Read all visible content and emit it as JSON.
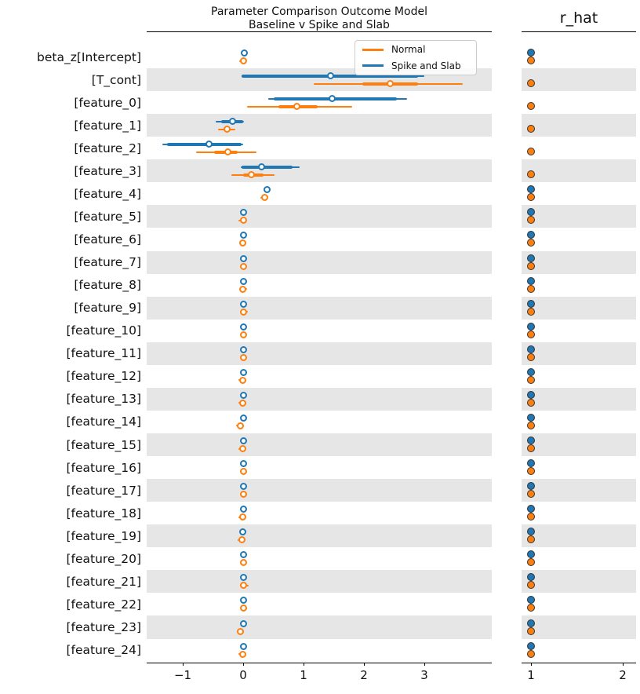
{
  "chart_data": {
    "type": "scatter",
    "subtype": "forest-plot-two-panel",
    "title_lines": [
      "Parameter Comparison Outcome Model",
      "Baseline v Spike and Slab"
    ],
    "rhat_panel_title": "r_hat",
    "series": [
      {
        "key": "normal",
        "name": "Normal",
        "color": "#ff7f0e"
      },
      {
        "key": "spike",
        "name": "Spike and Slab",
        "color": "#1f77b4"
      }
    ],
    "colors": {
      "band": "#e6e6e6",
      "axis": "#000000",
      "marker_face": "#ffffff",
      "rhat_marker_edge": "#333333"
    },
    "main_axis": {
      "xlim": [
        -1.6,
        4.12
      ],
      "tick_values": [
        -1,
        0,
        1,
        2,
        3
      ],
      "tick_labels": [
        "−1",
        "0",
        "1",
        "2",
        "3"
      ]
    },
    "rhat_axis": {
      "xlim": [
        0.9,
        2.15
      ],
      "tick_values": [
        1,
        2
      ],
      "tick_labels": [
        "1",
        "2"
      ]
    },
    "legend_position": "upper-right-inside",
    "grid": false,
    "rows": [
      {
        "label": "beta_z[Intercept]",
        "band": false,
        "spike": {
          "median": 0.02,
          "ci": null,
          "thick": null,
          "rhat": 1.0
        },
        "normal": {
          "median": 0.0,
          "ci": [
            -0.06,
            0.03
          ],
          "thick": null,
          "rhat": 1.0
        }
      },
      {
        "label": "[T_cont]",
        "band": true,
        "spike": {
          "median": 1.45,
          "ci": [
            -0.02,
            3.0
          ],
          "thick": [
            -0.02,
            2.9
          ],
          "rhat": null
        },
        "normal": {
          "median": 2.44,
          "ci": [
            1.17,
            3.64
          ],
          "thick": [
            1.97,
            2.9
          ],
          "rhat": 1.0
        }
      },
      {
        "label": "[feature_0]",
        "band": false,
        "spike": {
          "median": 1.48,
          "ci": [
            0.41,
            2.71
          ],
          "thick": [
            0.5,
            2.55
          ],
          "rhat": null
        },
        "normal": {
          "median": 0.89,
          "ci": [
            0.06,
            1.8
          ],
          "thick": [
            0.58,
            1.23
          ],
          "rhat": 1.0
        }
      },
      {
        "label": "[feature_1]",
        "band": true,
        "spike": {
          "median": -0.18,
          "ci": [
            -0.45,
            0.01
          ],
          "thick": [
            -0.37,
            0.0
          ],
          "rhat": null
        },
        "normal": {
          "median": -0.27,
          "ci": [
            -0.42,
            -0.13
          ],
          "thick": [
            -0.32,
            -0.21
          ],
          "rhat": 1.0
        }
      },
      {
        "label": "[feature_2]",
        "band": false,
        "spike": {
          "median": -0.57,
          "ci": [
            -1.34,
            0.0
          ],
          "thick": [
            -1.26,
            -0.02
          ],
          "rhat": null
        },
        "normal": {
          "median": -0.25,
          "ci": [
            -0.78,
            0.22
          ],
          "thick": [
            -0.48,
            -0.09
          ],
          "rhat": 1.0
        }
      },
      {
        "label": "[feature_3]",
        "band": true,
        "spike": {
          "median": 0.3,
          "ci": [
            -0.04,
            0.93
          ],
          "thick": [
            -0.02,
            0.82
          ],
          "rhat": null
        },
        "normal": {
          "median": 0.14,
          "ci": [
            -0.19,
            0.52
          ],
          "thick": [
            0.0,
            0.34
          ],
          "rhat": 1.0
        }
      },
      {
        "label": "[feature_4]",
        "band": false,
        "spike": {
          "median": 0.39,
          "ci": null,
          "thick": null,
          "rhat": 1.0
        },
        "normal": {
          "median": 0.36,
          "ci": [
            0.28,
            0.38
          ],
          "thick": null,
          "rhat": 1.0
        }
      },
      {
        "label": "[feature_5]",
        "band": true,
        "spike": {
          "median": 0.0,
          "ci": null,
          "thick": null,
          "rhat": 1.0
        },
        "normal": {
          "median": 0.0,
          "ci": [
            -0.08,
            0.02
          ],
          "thick": null,
          "rhat": 1.0
        }
      },
      {
        "label": "[feature_6]",
        "band": false,
        "spike": {
          "median": 0.0,
          "ci": null,
          "thick": null,
          "rhat": 1.0
        },
        "normal": {
          "median": -0.01,
          "ci": [
            -0.05,
            0.03
          ],
          "thick": null,
          "rhat": 1.0
        }
      },
      {
        "label": "[feature_7]",
        "band": true,
        "spike": {
          "median": 0.0,
          "ci": null,
          "thick": null,
          "rhat": 1.0
        },
        "normal": {
          "median": 0.0,
          "ci": [
            -0.03,
            0.07
          ],
          "thick": null,
          "rhat": 1.0
        }
      },
      {
        "label": "[feature_8]",
        "band": false,
        "spike": {
          "median": 0.0,
          "ci": null,
          "thick": null,
          "rhat": 1.0
        },
        "normal": {
          "median": -0.01,
          "ci": [
            -0.04,
            0.06
          ],
          "thick": null,
          "rhat": 1.0
        }
      },
      {
        "label": "[feature_9]",
        "band": true,
        "spike": {
          "median": 0.0,
          "ci": null,
          "thick": null,
          "rhat": 1.0
        },
        "normal": {
          "median": 0.0,
          "ci": [
            -0.03,
            0.08
          ],
          "thick": null,
          "rhat": 1.0
        }
      },
      {
        "label": "[feature_10]",
        "band": false,
        "spike": {
          "median": 0.0,
          "ci": null,
          "thick": null,
          "rhat": 1.0
        },
        "normal": {
          "median": 0.0,
          "ci": [
            -0.04,
            0.04
          ],
          "thick": null,
          "rhat": 1.0
        }
      },
      {
        "label": "[feature_11]",
        "band": true,
        "spike": {
          "median": 0.0,
          "ci": null,
          "thick": null,
          "rhat": 1.0
        },
        "normal": {
          "median": 0.0,
          "ci": [
            -0.04,
            0.04
          ],
          "thick": null,
          "rhat": 1.0
        }
      },
      {
        "label": "[feature_12]",
        "band": false,
        "spike": {
          "median": 0.0,
          "ci": null,
          "thick": null,
          "rhat": 1.0
        },
        "normal": {
          "median": -0.01,
          "ci": [
            -0.08,
            0.02
          ],
          "thick": null,
          "rhat": 1.0
        }
      },
      {
        "label": "[feature_13]",
        "band": true,
        "spike": {
          "median": 0.0,
          "ci": null,
          "thick": null,
          "rhat": 1.0
        },
        "normal": {
          "median": -0.01,
          "ci": [
            -0.08,
            0.02
          ],
          "thick": null,
          "rhat": 1.0
        }
      },
      {
        "label": "[feature_14]",
        "band": false,
        "spike": {
          "median": 0.0,
          "ci": null,
          "thick": null,
          "rhat": 1.0
        },
        "normal": {
          "median": -0.04,
          "ci": [
            -0.12,
            0.01
          ],
          "thick": null,
          "rhat": 1.0
        }
      },
      {
        "label": "[feature_15]",
        "band": true,
        "spike": {
          "median": 0.0,
          "ci": null,
          "thick": null,
          "rhat": 1.0
        },
        "normal": {
          "median": -0.01,
          "ci": [
            -0.08,
            0.02
          ],
          "thick": null,
          "rhat": 1.0
        }
      },
      {
        "label": "[feature_16]",
        "band": false,
        "spike": {
          "median": 0.0,
          "ci": null,
          "thick": null,
          "rhat": 1.0
        },
        "normal": {
          "median": 0.0,
          "ci": [
            -0.03,
            0.07
          ],
          "thick": null,
          "rhat": 1.0
        }
      },
      {
        "label": "[feature_17]",
        "band": true,
        "spike": {
          "median": 0.0,
          "ci": null,
          "thick": null,
          "rhat": 1.0
        },
        "normal": {
          "median": 0.0,
          "ci": [
            -0.04,
            0.04
          ],
          "thick": null,
          "rhat": 1.0
        }
      },
      {
        "label": "[feature_18]",
        "band": false,
        "spike": {
          "median": 0.0,
          "ci": null,
          "thick": null,
          "rhat": 1.0
        },
        "normal": {
          "median": -0.01,
          "ci": [
            -0.08,
            0.02
          ],
          "thick": null,
          "rhat": 1.0
        }
      },
      {
        "label": "[feature_19]",
        "band": true,
        "spike": {
          "median": -0.01,
          "ci": null,
          "thick": null,
          "rhat": 1.0
        },
        "normal": {
          "median": -0.02,
          "ci": [
            -0.09,
            0.02
          ],
          "thick": null,
          "rhat": 1.0
        }
      },
      {
        "label": "[feature_20]",
        "band": false,
        "spike": {
          "median": 0.0,
          "ci": null,
          "thick": null,
          "rhat": 1.0
        },
        "normal": {
          "median": 0.0,
          "ci": [
            -0.04,
            0.04
          ],
          "thick": null,
          "rhat": 1.0
        }
      },
      {
        "label": "[feature_21]",
        "band": true,
        "spike": {
          "median": 0.0,
          "ci": null,
          "thick": null,
          "rhat": 1.0
        },
        "normal": {
          "median": 0.01,
          "ci": [
            -0.05,
            0.09
          ],
          "thick": null,
          "rhat": 1.0
        }
      },
      {
        "label": "[feature_22]",
        "band": false,
        "spike": {
          "median": 0.0,
          "ci": null,
          "thick": null,
          "rhat": 1.0
        },
        "normal": {
          "median": 0.0,
          "ci": [
            -0.03,
            0.07
          ],
          "thick": null,
          "rhat": 1.0
        }
      },
      {
        "label": "[feature_23]",
        "band": true,
        "spike": {
          "median": 0.0,
          "ci": null,
          "thick": null,
          "rhat": 1.0
        },
        "normal": {
          "median": -0.04,
          "ci": [
            -0.11,
            0.01
          ],
          "thick": null,
          "rhat": 1.0
        }
      },
      {
        "label": "[feature_24]",
        "band": false,
        "spike": {
          "median": 0.0,
          "ci": null,
          "thick": null,
          "rhat": 1.0
        },
        "normal": {
          "median": -0.01,
          "ci": [
            -0.08,
            0.02
          ],
          "thick": null,
          "rhat": 1.0
        }
      }
    ]
  }
}
